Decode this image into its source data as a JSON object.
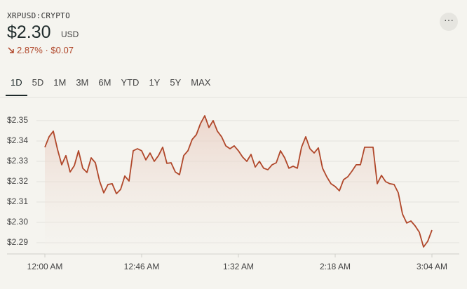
{
  "header": {
    "symbol": "XRPUSD:CRYPTO",
    "price": "$2.30",
    "currency": "USD",
    "change": "2.87% · $0.07"
  },
  "range_tabs": [
    "1D",
    "5D",
    "1M",
    "3M",
    "6M",
    "YTD",
    "1Y",
    "5Y",
    "MAX"
  ],
  "chart_data": {
    "type": "line",
    "x": [
      0,
      2,
      4,
      6,
      8,
      10,
      12,
      14,
      16,
      18,
      20,
      22,
      24,
      26,
      28,
      30,
      32,
      34,
      36,
      38,
      40,
      42,
      44,
      46,
      48,
      50,
      52,
      54,
      56,
      58,
      60,
      62,
      64,
      66,
      68,
      70,
      72,
      74,
      76,
      78,
      80,
      82,
      84,
      86,
      88,
      90,
      92,
      94,
      96,
      98,
      100,
      102,
      104,
      106,
      108,
      110,
      112,
      114,
      116,
      118,
      120,
      122,
      124,
      126,
      128,
      130,
      132,
      134,
      136,
      138,
      140,
      142,
      144,
      146,
      148,
      150,
      152,
      154,
      156,
      158,
      160,
      162,
      164,
      166,
      168,
      170,
      172,
      174,
      176,
      178,
      180,
      182,
      184
    ],
    "series": [
      {
        "color": "#b0472a",
        "values": [
          2.3369,
          2.3421,
          2.3448,
          2.3359,
          2.3283,
          2.3328,
          2.3248,
          2.3279,
          2.3352,
          2.3266,
          2.3245,
          2.3317,
          2.3293,
          2.3203,
          2.3145,
          2.3186,
          2.319,
          2.3141,
          2.3162,
          2.3228,
          2.3203,
          2.3352,
          2.3362,
          2.3352,
          2.3307,
          2.3341,
          2.33,
          2.3328,
          2.3369,
          2.329,
          2.3293,
          2.3248,
          2.3234,
          2.3328,
          2.3352,
          2.3407,
          2.3431,
          2.3486,
          2.3524,
          2.3466,
          2.35,
          2.3448,
          2.3421,
          2.3376,
          2.3362,
          2.3376,
          2.3352,
          2.3321,
          2.33,
          2.3334,
          2.3272,
          2.33,
          2.3266,
          2.3259,
          2.3283,
          2.3293,
          2.3352,
          2.3317,
          2.3266,
          2.3276,
          2.3266,
          2.3369,
          2.3421,
          2.3362,
          2.3341,
          2.3366,
          2.3266,
          2.3224,
          2.319,
          2.3176,
          2.3155,
          2.321,
          2.3224,
          2.3252,
          2.3283,
          2.3283,
          2.3369,
          2.3369,
          2.3369,
          2.319,
          2.3231,
          2.32,
          2.319,
          2.3186,
          2.3145,
          2.3041,
          2.2997,
          2.3007,
          2.2983,
          2.2952,
          2.2879,
          2.2907,
          2.2962
        ]
      }
    ],
    "xlim": [
      -4,
      197
    ],
    "xticks": [
      {
        "value": 0,
        "label": "12:00 AM"
      },
      {
        "value": 46,
        "label": "12:46 AM"
      },
      {
        "value": 92,
        "label": "1:32 AM"
      },
      {
        "value": 138,
        "label": "2:18 AM"
      },
      {
        "value": 184,
        "label": "3:04 AM"
      }
    ],
    "ylim": [
      2.2845,
      2.3548
    ],
    "yticks": [
      {
        "value": 2.29,
        "label": "$2.29"
      },
      {
        "value": 2.3,
        "label": "$2.30"
      },
      {
        "value": 2.31,
        "label": "$2.31"
      },
      {
        "value": 2.32,
        "label": "$2.32"
      },
      {
        "value": 2.33,
        "label": "$2.33"
      },
      {
        "value": 2.34,
        "label": "$2.34"
      },
      {
        "value": 2.35,
        "label": "$2.35"
      }
    ],
    "grid": true
  }
}
